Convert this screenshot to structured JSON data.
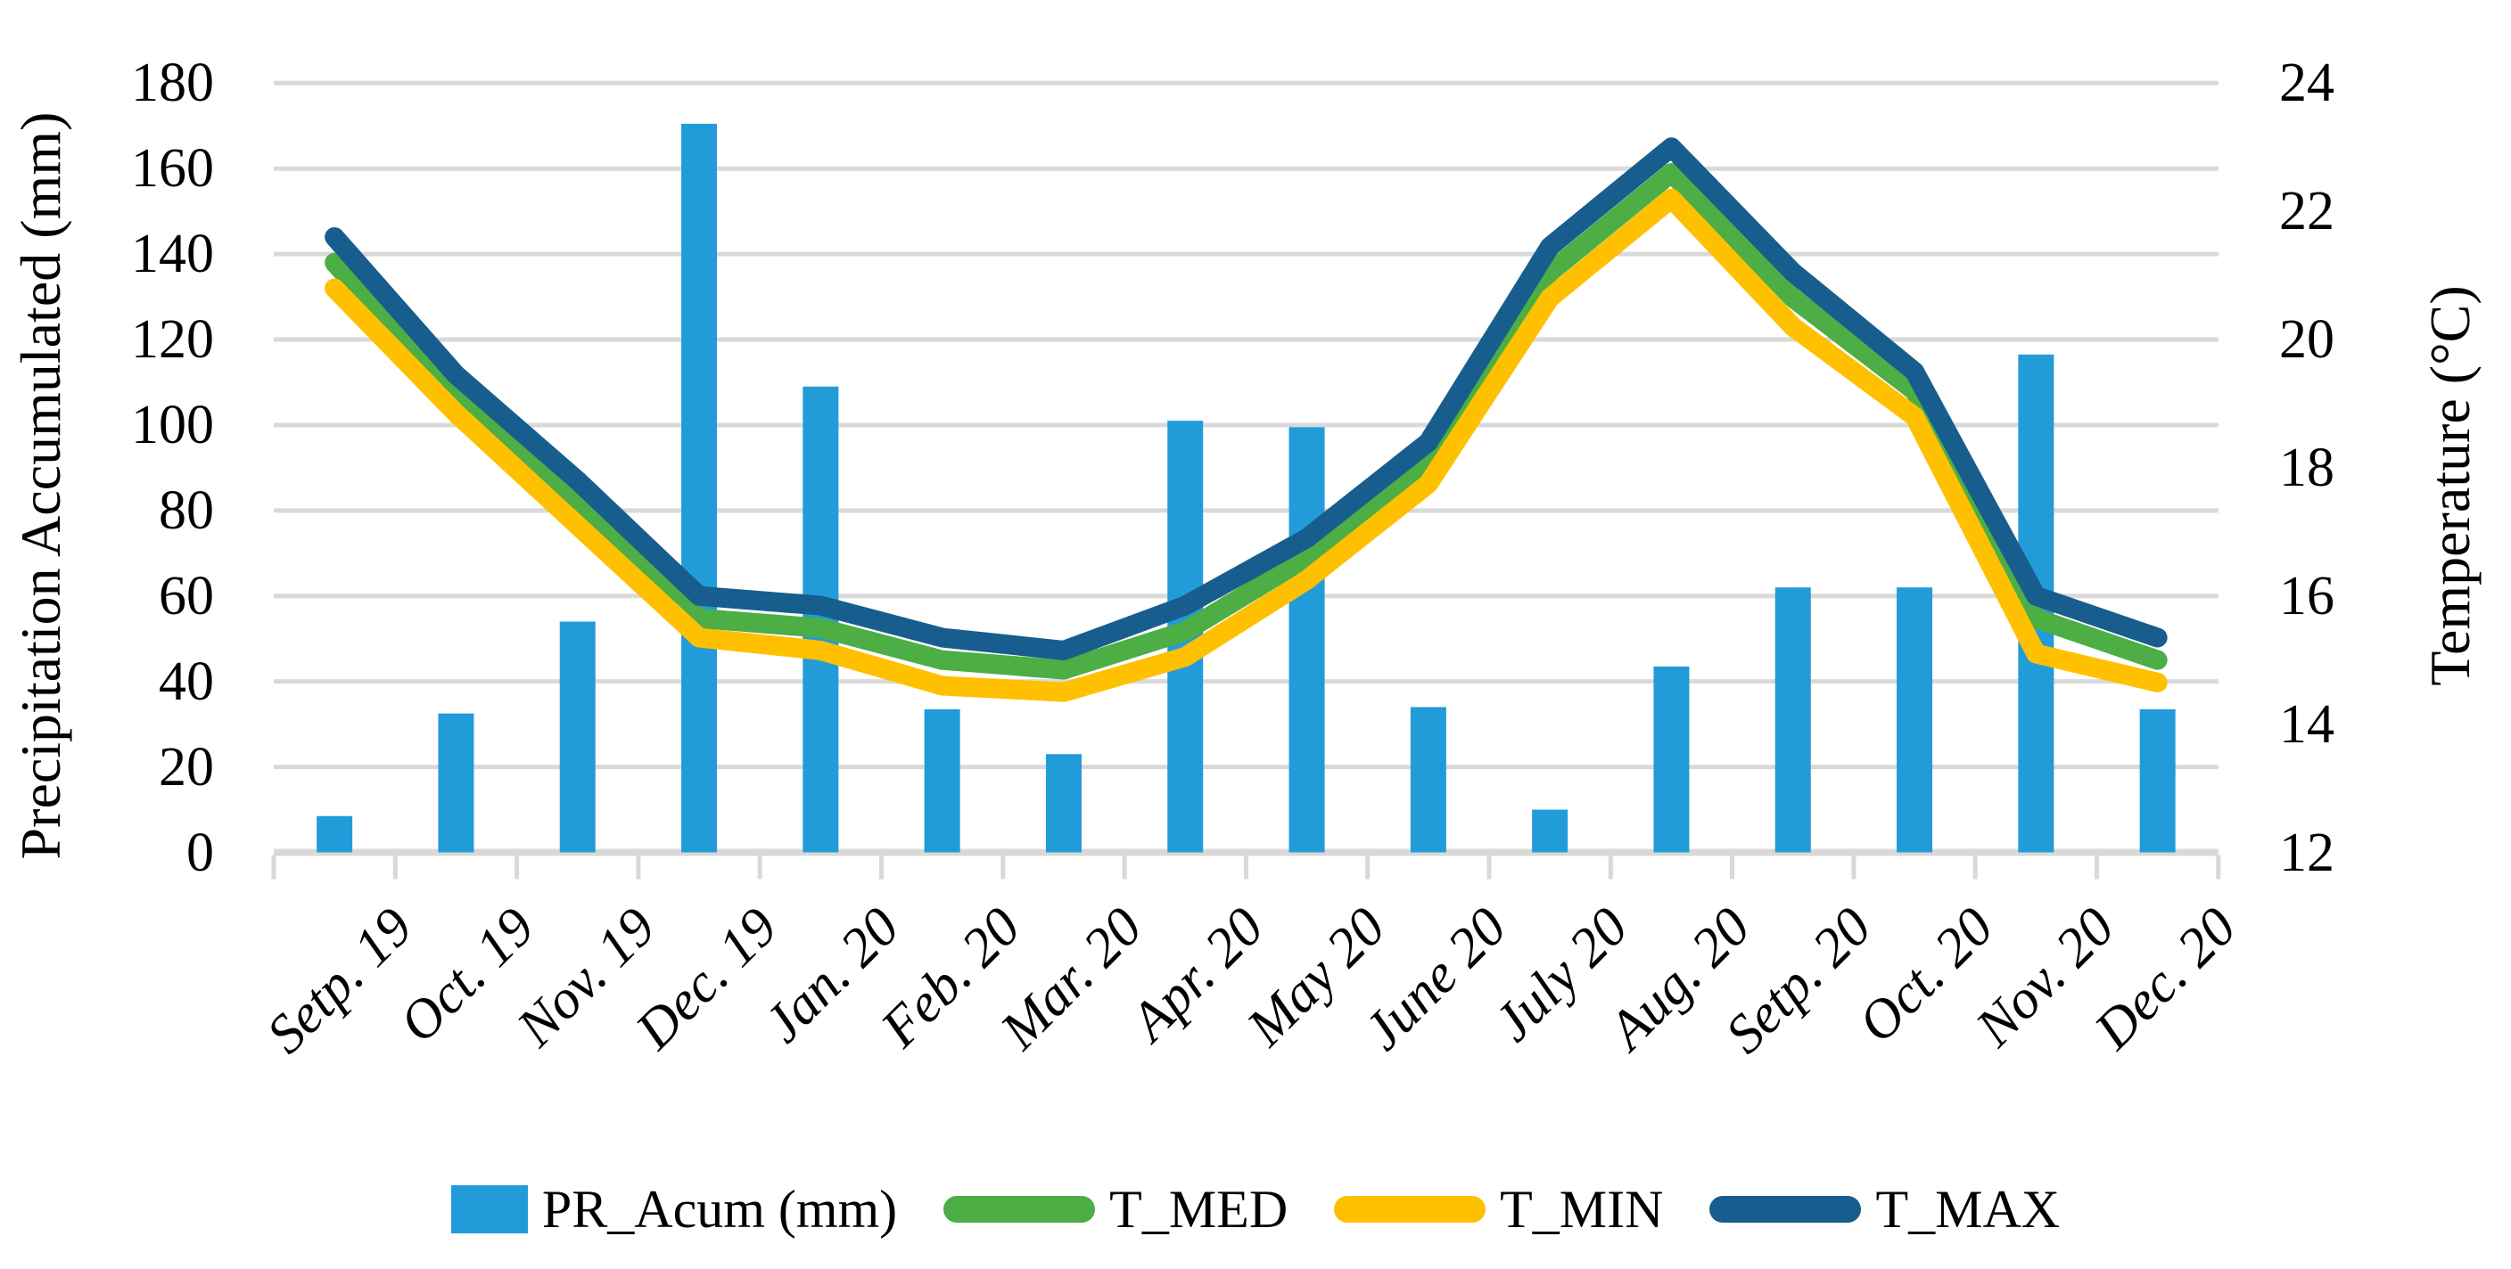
{
  "chart": {
    "left_axis": {
      "title": "Precipitation Accumulated (mm)",
      "min": 0,
      "max": 180,
      "step": 20,
      "tick_labels": [
        "180",
        "160",
        "140",
        "120",
        "100",
        "80",
        "60",
        "40",
        "20",
        "0"
      ]
    },
    "right_axis": {
      "title": "Temperature (°C)",
      "min": 12,
      "max": 24,
      "step": 2,
      "tick_labels": [
        "24",
        "22",
        "20",
        "18",
        "16",
        "14",
        "12"
      ]
    },
    "colors": {
      "bar_blue": "#219CD9",
      "line_green": "#4CAE44",
      "line_yellow": "#FFC000",
      "line_dark_blue": "#175E8E",
      "gridline": "#D9D9D9",
      "axis_line": "#D9D9D9",
      "text": "#000000"
    },
    "legend": [
      {
        "label": "PR_Acum (mm)",
        "type": "bar",
        "color": "#219CD9"
      },
      {
        "label": "T_MED",
        "type": "line",
        "color": "#4CAE44"
      },
      {
        "label": "T_MIN",
        "type": "line",
        "color": "#FFC000"
      },
      {
        "label": "T_MAX",
        "type": "line",
        "color": "#175E8E"
      }
    ]
  },
  "chart_data": {
    "type": "combo-bar-line",
    "categories": [
      "Setp. 19",
      "Oct. 19",
      "Nov. 19",
      "Dec. 19",
      "Jan. 20",
      "Feb. 20",
      "Mar. 20",
      "Apr. 20",
      "May 20",
      "June 20",
      "July 20",
      "Aug. 20",
      "Setp. 20",
      "Oct. 20",
      "Nov. 20",
      "Dec. 20"
    ],
    "bar_series": {
      "name": "PR_Acum (mm)",
      "axis": "left",
      "unit": "mm",
      "color": "#219CD9",
      "values": [
        8.5,
        32.5,
        54,
        170.5,
        109,
        33.5,
        23,
        101,
        99.5,
        34,
        10,
        43.5,
        62,
        62,
        116.5,
        33.5
      ]
    },
    "line_series": [
      {
        "name": "T_MED",
        "axis": "right",
        "unit": "°C",
        "color": "#4CAE44",
        "values": [
          21.2,
          19.1,
          17.45,
          15.65,
          15.5,
          15.0,
          14.85,
          15.45,
          16.6,
          18.1,
          21.05,
          22.6,
          20.65,
          19.2,
          15.65,
          15.0
        ]
      },
      {
        "name": "T_MIN",
        "axis": "right",
        "unit": "°C",
        "color": "#FFC000",
        "values": [
          20.8,
          18.85,
          17.1,
          15.35,
          15.15,
          14.6,
          14.5,
          15.05,
          16.25,
          17.75,
          20.65,
          22.2,
          20.2,
          18.8,
          15.1,
          14.65
        ]
      },
      {
        "name": "T_MAX",
        "axis": "right",
        "unit": "°C",
        "color": "#175E8E",
        "values": [
          21.6,
          19.45,
          17.8,
          16.0,
          15.85,
          15.35,
          15.15,
          15.85,
          16.9,
          18.4,
          21.45,
          23.0,
          21.05,
          19.5,
          16.0,
          15.35
        ]
      }
    ],
    "left_ylim": [
      0,
      180
    ],
    "right_ylim": [
      12,
      24
    ],
    "grid": "horizontal",
    "legend_position": "bottom"
  }
}
